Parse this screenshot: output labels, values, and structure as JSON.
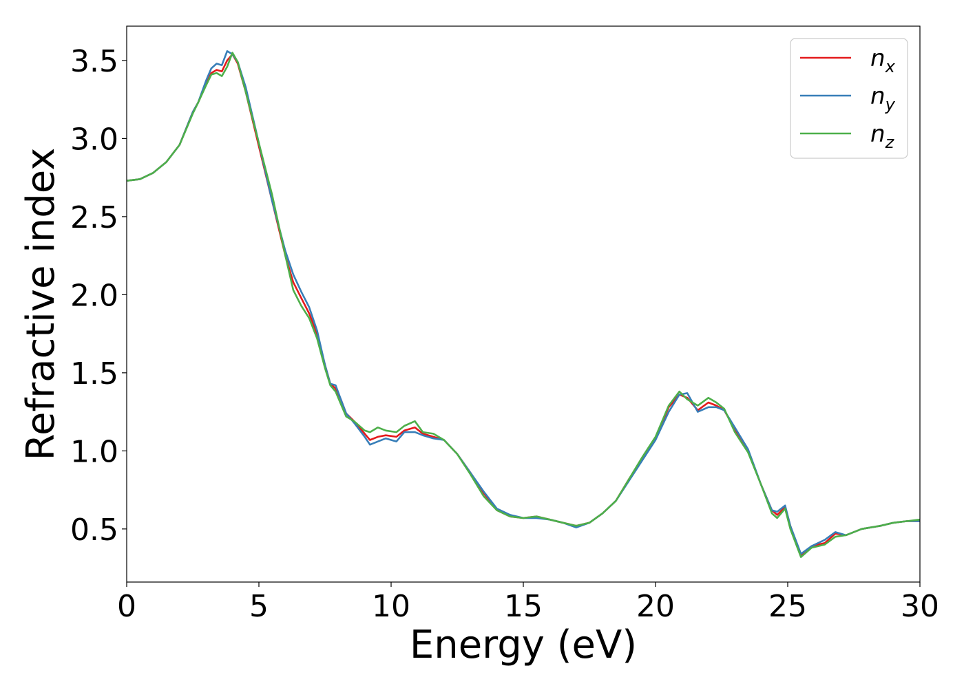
{
  "chart_data": {
    "type": "line",
    "xlabel": "Energy (eV)",
    "ylabel": "Refractive index",
    "xlim": [
      0,
      30
    ],
    "ylim": [
      0.16,
      3.72
    ],
    "x_ticks": [
      0,
      5,
      10,
      15,
      20,
      25,
      30
    ],
    "y_ticks": [
      0.5,
      1.0,
      1.5,
      2.0,
      2.5,
      3.0,
      3.5
    ],
    "x_tick_labels": [
      "0",
      "5",
      "10",
      "15",
      "20",
      "25",
      "30"
    ],
    "y_tick_labels": [
      "0.5",
      "1.0",
      "1.5",
      "2.0",
      "2.5",
      "3.0",
      "3.5"
    ],
    "grid": false,
    "legend_position": "top-right",
    "series": [
      {
        "name": "n_x",
        "label_base": "n",
        "label_sub": "x",
        "color": "#e41a1c",
        "points": [
          [
            0,
            2.73
          ],
          [
            0.5,
            2.74
          ],
          [
            1,
            2.78
          ],
          [
            1.5,
            2.85
          ],
          [
            2,
            2.96
          ],
          [
            2.5,
            3.17
          ],
          [
            2.7,
            3.23
          ],
          [
            3,
            3.35
          ],
          [
            3.2,
            3.42
          ],
          [
            3.4,
            3.44
          ],
          [
            3.6,
            3.43
          ],
          [
            3.8,
            3.5
          ],
          [
            4,
            3.54
          ],
          [
            4.2,
            3.48
          ],
          [
            4.5,
            3.3
          ],
          [
            5,
            2.95
          ],
          [
            5.5,
            2.6
          ],
          [
            6,
            2.25
          ],
          [
            6.3,
            2.08
          ],
          [
            6.6,
            1.98
          ],
          [
            6.9,
            1.88
          ],
          [
            7.2,
            1.75
          ],
          [
            7.5,
            1.55
          ],
          [
            7.7,
            1.43
          ],
          [
            7.9,
            1.4
          ],
          [
            8.1,
            1.33
          ],
          [
            8.3,
            1.24
          ],
          [
            8.6,
            1.19
          ],
          [
            9,
            1.11
          ],
          [
            9.2,
            1.07
          ],
          [
            9.5,
            1.09
          ],
          [
            9.8,
            1.1
          ],
          [
            10.2,
            1.09
          ],
          [
            10.5,
            1.13
          ],
          [
            10.9,
            1.15
          ],
          [
            11.2,
            1.11
          ],
          [
            11.6,
            1.09
          ],
          [
            12,
            1.07
          ],
          [
            12.5,
            0.98
          ],
          [
            13,
            0.86
          ],
          [
            13.5,
            0.73
          ],
          [
            14,
            0.62
          ],
          [
            14.5,
            0.58
          ],
          [
            15,
            0.57
          ],
          [
            15.5,
            0.58
          ],
          [
            16,
            0.56
          ],
          [
            16.5,
            0.54
          ],
          [
            17,
            0.52
          ],
          [
            17.5,
            0.54
          ],
          [
            18,
            0.6
          ],
          [
            18.5,
            0.68
          ],
          [
            19,
            0.82
          ],
          [
            19.5,
            0.95
          ],
          [
            20,
            1.08
          ],
          [
            20.5,
            1.28
          ],
          [
            20.9,
            1.36
          ],
          [
            21.2,
            1.34
          ],
          [
            21.6,
            1.26
          ],
          [
            22,
            1.31
          ],
          [
            22.3,
            1.29
          ],
          [
            22.6,
            1.26
          ],
          [
            23,
            1.14
          ],
          [
            23.5,
            1.0
          ],
          [
            24,
            0.78
          ],
          [
            24.4,
            0.62
          ],
          [
            24.6,
            0.59
          ],
          [
            24.9,
            0.64
          ],
          [
            25.1,
            0.52
          ],
          [
            25.5,
            0.33
          ],
          [
            25.9,
            0.39
          ],
          [
            26.4,
            0.41
          ],
          [
            26.8,
            0.47
          ],
          [
            27.2,
            0.46
          ],
          [
            27.8,
            0.5
          ],
          [
            28.5,
            0.52
          ],
          [
            29,
            0.54
          ],
          [
            29.5,
            0.55
          ],
          [
            30,
            0.55
          ]
        ]
      },
      {
        "name": "n_y",
        "label_base": "n",
        "label_sub": "y",
        "color": "#377eb8",
        "points": [
          [
            0,
            2.73
          ],
          [
            0.5,
            2.74
          ],
          [
            1,
            2.78
          ],
          [
            1.5,
            2.85
          ],
          [
            2,
            2.96
          ],
          [
            2.5,
            3.17
          ],
          [
            2.7,
            3.23
          ],
          [
            3,
            3.37
          ],
          [
            3.2,
            3.45
          ],
          [
            3.4,
            3.48
          ],
          [
            3.6,
            3.47
          ],
          [
            3.8,
            3.56
          ],
          [
            4,
            3.54
          ],
          [
            4.2,
            3.49
          ],
          [
            4.5,
            3.33
          ],
          [
            5,
            2.97
          ],
          [
            5.5,
            2.6
          ],
          [
            6,
            2.28
          ],
          [
            6.3,
            2.13
          ],
          [
            6.6,
            2.02
          ],
          [
            6.9,
            1.92
          ],
          [
            7.2,
            1.77
          ],
          [
            7.5,
            1.55
          ],
          [
            7.7,
            1.43
          ],
          [
            7.9,
            1.42
          ],
          [
            8.1,
            1.33
          ],
          [
            8.3,
            1.24
          ],
          [
            8.6,
            1.18
          ],
          [
            9,
            1.09
          ],
          [
            9.2,
            1.04
          ],
          [
            9.5,
            1.06
          ],
          [
            9.8,
            1.08
          ],
          [
            10.2,
            1.06
          ],
          [
            10.5,
            1.12
          ],
          [
            10.9,
            1.12
          ],
          [
            11.2,
            1.1
          ],
          [
            11.6,
            1.08
          ],
          [
            12,
            1.07
          ],
          [
            12.5,
            0.98
          ],
          [
            13,
            0.86
          ],
          [
            13.5,
            0.74
          ],
          [
            14,
            0.63
          ],
          [
            14.5,
            0.59
          ],
          [
            15,
            0.57
          ],
          [
            15.5,
            0.57
          ],
          [
            16,
            0.56
          ],
          [
            16.5,
            0.54
          ],
          [
            17,
            0.51
          ],
          [
            17.5,
            0.54
          ],
          [
            18,
            0.6
          ],
          [
            18.5,
            0.68
          ],
          [
            19,
            0.81
          ],
          [
            19.5,
            0.94
          ],
          [
            20,
            1.07
          ],
          [
            20.5,
            1.25
          ],
          [
            20.9,
            1.36
          ],
          [
            21.2,
            1.37
          ],
          [
            21.6,
            1.25
          ],
          [
            22,
            1.28
          ],
          [
            22.3,
            1.28
          ],
          [
            22.6,
            1.26
          ],
          [
            23,
            1.15
          ],
          [
            23.5,
            1.01
          ],
          [
            24,
            0.78
          ],
          [
            24.4,
            0.62
          ],
          [
            24.6,
            0.61
          ],
          [
            24.9,
            0.65
          ],
          [
            25.1,
            0.52
          ],
          [
            25.5,
            0.34
          ],
          [
            25.9,
            0.39
          ],
          [
            26.4,
            0.43
          ],
          [
            26.8,
            0.48
          ],
          [
            27.2,
            0.46
          ],
          [
            27.8,
            0.5
          ],
          [
            28.5,
            0.52
          ],
          [
            29,
            0.54
          ],
          [
            29.5,
            0.55
          ],
          [
            30,
            0.55
          ]
        ]
      },
      {
        "name": "n_z",
        "label_base": "n",
        "label_sub": "z",
        "color": "#4daf4a",
        "points": [
          [
            0,
            2.73
          ],
          [
            0.5,
            2.74
          ],
          [
            1,
            2.78
          ],
          [
            1.5,
            2.85
          ],
          [
            2,
            2.96
          ],
          [
            2.5,
            3.16
          ],
          [
            2.7,
            3.23
          ],
          [
            3,
            3.34
          ],
          [
            3.2,
            3.41
          ],
          [
            3.4,
            3.42
          ],
          [
            3.6,
            3.4
          ],
          [
            3.8,
            3.46
          ],
          [
            4,
            3.55
          ],
          [
            4.2,
            3.49
          ],
          [
            4.5,
            3.3
          ],
          [
            5,
            2.97
          ],
          [
            5.5,
            2.64
          ],
          [
            6,
            2.25
          ],
          [
            6.3,
            2.03
          ],
          [
            6.6,
            1.93
          ],
          [
            6.9,
            1.85
          ],
          [
            7.2,
            1.72
          ],
          [
            7.5,
            1.53
          ],
          [
            7.7,
            1.42
          ],
          [
            7.9,
            1.38
          ],
          [
            8.1,
            1.3
          ],
          [
            8.3,
            1.22
          ],
          [
            8.6,
            1.19
          ],
          [
            9,
            1.13
          ],
          [
            9.2,
            1.12
          ],
          [
            9.5,
            1.15
          ],
          [
            9.8,
            1.13
          ],
          [
            10.2,
            1.12
          ],
          [
            10.5,
            1.16
          ],
          [
            10.9,
            1.19
          ],
          [
            11.2,
            1.12
          ],
          [
            11.6,
            1.11
          ],
          [
            12,
            1.07
          ],
          [
            12.5,
            0.98
          ],
          [
            13,
            0.85
          ],
          [
            13.5,
            0.71
          ],
          [
            14,
            0.62
          ],
          [
            14.5,
            0.58
          ],
          [
            15,
            0.57
          ],
          [
            15.5,
            0.58
          ],
          [
            16,
            0.56
          ],
          [
            16.5,
            0.54
          ],
          [
            17,
            0.52
          ],
          [
            17.5,
            0.54
          ],
          [
            18,
            0.6
          ],
          [
            18.5,
            0.68
          ],
          [
            19,
            0.82
          ],
          [
            19.5,
            0.96
          ],
          [
            20,
            1.09
          ],
          [
            20.5,
            1.29
          ],
          [
            20.9,
            1.38
          ],
          [
            21.2,
            1.33
          ],
          [
            21.6,
            1.29
          ],
          [
            22,
            1.34
          ],
          [
            22.3,
            1.31
          ],
          [
            22.6,
            1.27
          ],
          [
            23,
            1.12
          ],
          [
            23.5,
            0.99
          ],
          [
            24,
            0.78
          ],
          [
            24.4,
            0.6
          ],
          [
            24.6,
            0.57
          ],
          [
            24.9,
            0.63
          ],
          [
            25.1,
            0.5
          ],
          [
            25.5,
            0.32
          ],
          [
            25.9,
            0.38
          ],
          [
            26.4,
            0.4
          ],
          [
            26.8,
            0.45
          ],
          [
            27.2,
            0.46
          ],
          [
            27.8,
            0.5
          ],
          [
            28.5,
            0.52
          ],
          [
            29,
            0.54
          ],
          [
            29.5,
            0.55
          ],
          [
            30,
            0.56
          ]
        ]
      }
    ]
  }
}
